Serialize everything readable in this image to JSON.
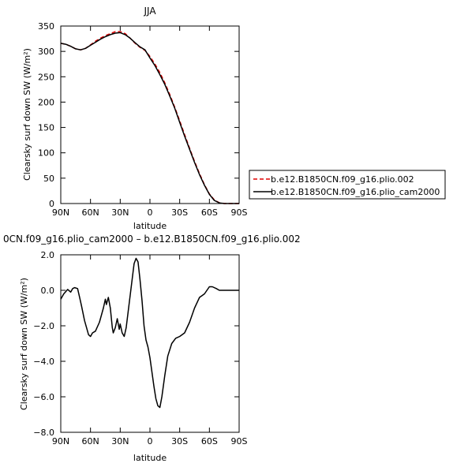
{
  "chart_data": [
    {
      "type": "line",
      "title": "JJA",
      "xlabel": "latitude",
      "ylabel": "Clearsky surf down SW (W/m²)",
      "xlim": [
        90,
        -90
      ],
      "ylim": [
        0,
        350
      ],
      "x_ticks": [
        90,
        60,
        30,
        0,
        -30,
        -60,
        -90
      ],
      "x_tick_labels": [
        "90N",
        "60N",
        "30N",
        "0",
        "30S",
        "60S",
        "90S"
      ],
      "y_ticks": [
        0,
        50,
        100,
        150,
        200,
        250,
        300,
        350
      ],
      "y_tick_labels": [
        "0",
        "50",
        "100",
        "150",
        "200",
        "250",
        "300",
        "350"
      ],
      "grid": false,
      "legend_position": "right",
      "series": [
        {
          "name": "b.e12.B1850CN.f09_g16.plio.002",
          "color": "#e00000",
          "dash": "dashed",
          "x": [
            90,
            85,
            80,
            75,
            70,
            65,
            60,
            55,
            50,
            45,
            40,
            35,
            30,
            25,
            20,
            15,
            10,
            5,
            0,
            -5,
            -10,
            -15,
            -20,
            -25,
            -30,
            -35,
            -40,
            -45,
            -50,
            -55,
            -60,
            -65,
            -70,
            -75,
            -80,
            -85,
            -90
          ],
          "y": [
            316,
            314,
            310,
            305,
            303,
            306,
            313,
            320,
            326,
            331,
            335,
            339,
            339,
            335,
            326,
            316,
            308,
            302,
            290,
            275,
            258,
            238,
            215,
            190,
            163,
            136,
            109,
            83,
            59,
            37,
            19,
            7,
            1.5,
            0,
            0,
            0,
            0
          ]
        },
        {
          "name": "b.e12.B1850CN.f09_g16.plio_cam2000",
          "color": "#000000",
          "dash": "solid",
          "x": [
            90,
            85,
            80,
            75,
            70,
            65,
            60,
            55,
            50,
            45,
            40,
            35,
            30,
            25,
            20,
            15,
            10,
            5,
            0,
            -5,
            -10,
            -15,
            -20,
            -25,
            -30,
            -35,
            -40,
            -45,
            -50,
            -55,
            -60,
            -65,
            -70,
            -75,
            -80,
            -85,
            -90
          ],
          "y": [
            316,
            314,
            310,
            305,
            303,
            306,
            312,
            318,
            324,
            329,
            333,
            336,
            337,
            333,
            326,
            317,
            309,
            303,
            287,
            272,
            254,
            235,
            212,
            188,
            160,
            133,
            107,
            81,
            57,
            36,
            18,
            6,
            1.2,
            0,
            0,
            0,
            0
          ]
        }
      ]
    },
    {
      "type": "line",
      "title": "0CN.f09_g16.plio_cam2000 – b.e12.B1850CN.f09_g16.plio.002",
      "xlabel": "latitude",
      "ylabel": "Clearsky surf down SW (W/m²)",
      "xlim": [
        90,
        -90
      ],
      "ylim": [
        -8.0,
        2.0
      ],
      "x_ticks": [
        90,
        60,
        30,
        0,
        -30,
        -60,
        -90
      ],
      "x_tick_labels": [
        "90N",
        "60N",
        "30N",
        "0",
        "30S",
        "60S",
        "90S"
      ],
      "y_ticks": [
        -8,
        -6,
        -4,
        -2,
        0,
        2
      ],
      "y_tick_labels": [
        "−8.0",
        "−6.0",
        "−4.0",
        "−2.0",
        "0.0",
        "2.0"
      ],
      "grid": false,
      "series": [
        {
          "color": "#000000",
          "x": [
            90,
            87,
            83,
            80,
            78,
            76,
            73,
            71,
            69,
            66,
            62,
            60,
            58,
            55,
            51,
            47,
            45,
            44,
            42,
            40,
            38,
            37,
            35,
            33,
            31,
            30,
            28,
            26,
            24,
            22,
            20,
            18,
            16,
            14,
            12,
            10,
            8,
            6,
            4,
            2,
            0,
            -2,
            -4,
            -6,
            -8,
            -10,
            -12,
            -15,
            -18,
            -22,
            -26,
            -30,
            -35,
            -40,
            -45,
            -50,
            -55,
            -60,
            -63,
            -67,
            -70,
            -75,
            -80,
            -85,
            -90
          ],
          "y": [
            -0.5,
            -0.2,
            0.05,
            -0.1,
            0.1,
            0.15,
            0.1,
            -0.4,
            -0.9,
            -1.7,
            -2.5,
            -2.6,
            -2.4,
            -2.3,
            -1.8,
            -1.0,
            -0.5,
            -0.8,
            -0.4,
            -1.0,
            -2.1,
            -2.4,
            -2.1,
            -1.6,
            -2.2,
            -1.9,
            -2.4,
            -2.6,
            -2.1,
            -1.2,
            -0.3,
            0.6,
            1.5,
            1.8,
            1.6,
            0.6,
            -0.6,
            -2.0,
            -2.8,
            -3.2,
            -3.8,
            -4.6,
            -5.4,
            -6.1,
            -6.5,
            -6.6,
            -6.0,
            -4.8,
            -3.7,
            -3.0,
            -2.7,
            -2.6,
            -2.4,
            -1.8,
            -1.0,
            -0.4,
            -0.2,
            0.2,
            0.2,
            0.1,
            0.0,
            0.0,
            0.0,
            0.0,
            0.0
          ]
        }
      ]
    }
  ]
}
